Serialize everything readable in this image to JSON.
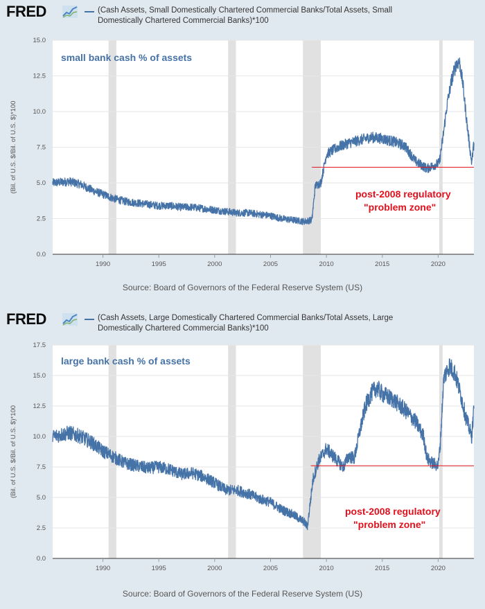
{
  "brand": {
    "logo": "FRED",
    "logo_icon": "chart-line-icon"
  },
  "chart_data": [
    {
      "type": "line",
      "title": "(Cash Assets, Small Domestically Chartered Commercial Banks/Total Assets, Small Domestically Chartered Commercial Banks)*100",
      "ylabel": "(Bil. of U.S. $/Bil. of U.S. $)*100",
      "xlabel": "",
      "source": "Source: Board of Governors of the Federal Reserve System (US)",
      "annotation": "small bank cash % of assets",
      "callout": [
        "post-2008 regulatory",
        "\"problem zone\""
      ],
      "reference_line": {
        "value": 6.1,
        "start_year": 2008.7
      },
      "xlim": [
        1985.5,
        2023.2
      ],
      "ylim": [
        0,
        15
      ],
      "x_ticks": [
        "1990",
        "1995",
        "2000",
        "2005",
        "2010",
        "2015",
        "2020"
      ],
      "y_ticks": [
        "0.0",
        "2.5",
        "5.0",
        "7.5",
        "10.0",
        "12.5",
        "15.0"
      ],
      "recessions": [
        [
          1990.5,
          1991.2
        ],
        [
          2001.2,
          2001.9
        ],
        [
          2007.9,
          2009.5
        ],
        [
          2020.1,
          2020.4
        ]
      ],
      "series": [
        {
          "name": "Small banks cash % of assets",
          "x": [
            1985.5,
            1987,
            1988,
            1989,
            1990,
            1991,
            1992,
            1993,
            1994,
            1995,
            1996,
            1997,
            1998,
            1999,
            2000,
            2001,
            2002,
            2003,
            2004,
            2005,
            2006,
            2007,
            2008,
            2008.7,
            2009,
            2009.5,
            2010,
            2011,
            2012,
            2013,
            2014,
            2015,
            2016,
            2017,
            2018,
            2019,
            2019.8,
            2020.1,
            2020.4,
            2020.8,
            2021.2,
            2021.6,
            2021.9,
            2022.2,
            2022.6,
            2023,
            2023.2
          ],
          "values": [
            5.0,
            5.1,
            4.9,
            4.5,
            4.2,
            3.9,
            3.7,
            3.6,
            3.5,
            3.4,
            3.4,
            3.3,
            3.3,
            3.2,
            3.1,
            3.0,
            2.9,
            2.9,
            2.8,
            2.7,
            2.5,
            2.4,
            2.3,
            2.4,
            4.8,
            5.0,
            7.0,
            7.5,
            7.8,
            8.0,
            8.2,
            8.1,
            7.9,
            7.6,
            6.5,
            6.0,
            6.3,
            6.4,
            8.0,
            10.5,
            12.2,
            13.3,
            13.5,
            12.0,
            9.0,
            6.4,
            7.8
          ]
        }
      ]
    },
    {
      "type": "line",
      "title": "(Cash Assets, Large Domestically Chartered Commercial Banks/Total Assets, Large Domestically Chartered Commercial Banks)*100",
      "ylabel": "(Bil. of U.S. $/Bil. of U.S. $)*100",
      "xlabel": "",
      "source": "Source: Board of Governors of the Federal Reserve System (US)",
      "annotation": "large bank cash % of assets",
      "callout": [
        "post-2008 regulatory",
        "\"problem zone\""
      ],
      "reference_line": {
        "value": 7.6,
        "start_year": 2008.6
      },
      "xlim": [
        1985.5,
        2023.2
      ],
      "ylim": [
        0,
        17.5
      ],
      "x_ticks": [
        "1990",
        "1995",
        "2000",
        "2005",
        "2010",
        "2015",
        "2020"
      ],
      "y_ticks": [
        "0.0",
        "2.5",
        "5.0",
        "7.5",
        "10.0",
        "12.5",
        "15.0",
        "17.5"
      ],
      "recessions": [
        [
          1990.5,
          1991.2
        ],
        [
          2001.2,
          2001.9
        ],
        [
          2007.9,
          2009.5
        ],
        [
          2020.1,
          2020.4
        ]
      ],
      "series": [
        {
          "name": "Large banks cash % of assets",
          "x": [
            1985.5,
            1987,
            1988,
            1989,
            1990,
            1991,
            1992,
            1993,
            1994,
            1995,
            1996,
            1997,
            1998,
            1999,
            2000,
            2001,
            2002,
            2003,
            2004,
            2005,
            2006,
            2007,
            2008,
            2008.3,
            2008.8,
            2009.3,
            2010,
            2011,
            2011.5,
            2012,
            2012.5,
            2013,
            2013.5,
            2014,
            2014.5,
            2015,
            2016,
            2017,
            2018,
            2018.7,
            2019,
            2019.5,
            2020,
            2020.2,
            2020.5,
            2021,
            2021.5,
            2022,
            2022.5,
            2023,
            2023.2
          ],
          "values": [
            10.0,
            10.3,
            10.0,
            9.5,
            8.8,
            8.3,
            7.8,
            7.6,
            7.4,
            7.5,
            7.3,
            6.9,
            7.0,
            6.7,
            6.2,
            5.6,
            5.6,
            5.3,
            4.9,
            4.6,
            4.0,
            3.6,
            3.0,
            2.6,
            6.5,
            8.0,
            9.0,
            8.0,
            7.5,
            8.4,
            8.2,
            10.5,
            12.5,
            13.5,
            14.0,
            13.5,
            13.0,
            12.2,
            11.2,
            10.0,
            8.2,
            7.8,
            7.6,
            9.5,
            14.8,
            15.8,
            15.2,
            13.5,
            11.5,
            10.0,
            12.3
          ]
        }
      ]
    }
  ]
}
